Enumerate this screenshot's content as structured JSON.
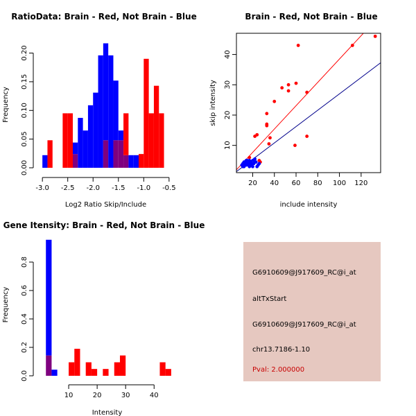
{
  "colors": {
    "red": "#ff0000",
    "blue": "#0000ff",
    "overlap": "#7f007f",
    "brain_line": "#ff0000",
    "notbrain_line": "#00008b",
    "info_bg": "#e6c8c0",
    "pval": "#c80000"
  },
  "chart_data": [
    {
      "id": "ratio-hist",
      "type": "bar",
      "title": "RatioData: Brain - Red, Not Brain - Blue",
      "xlabel": "Log2 Ratio Skip/Include",
      "ylabel": "Frequency",
      "xlim": [
        -3.05,
        -0.45
      ],
      "ylim": [
        0,
        0.22
      ],
      "xticks": [
        -3.0,
        -2.5,
        -2.0,
        -1.5,
        -1.0,
        -0.5
      ],
      "xtick_labels": [
        "-3.0",
        "-2.5",
        "-2.0",
        "-1.5",
        "-1.0",
        "-0.5"
      ],
      "yticks": [
        0,
        0.05,
        0.1,
        0.15,
        0.2
      ],
      "ytick_labels": [
        "0.00",
        "0.05",
        "0.10",
        "0.15",
        "0.20"
      ],
      "bin_width": 0.1,
      "series": [
        {
          "name": "Not Brain",
          "color": "blue",
          "bins": [
            [
              -3.0,
              0.022
            ],
            [
              -2.4,
              0.044
            ],
            [
              -2.3,
              0.087
            ],
            [
              -2.2,
              0.065
            ],
            [
              -2.1,
              0.109
            ],
            [
              -2.0,
              0.131
            ],
            [
              -1.9,
              0.196
            ],
            [
              -1.8,
              0.217
            ],
            [
              -1.7,
              0.196
            ],
            [
              -1.6,
              0.152
            ],
            [
              -1.5,
              0.065
            ],
            [
              -1.4,
              0.022
            ],
            [
              -1.3,
              0.022
            ],
            [
              -1.2,
              0.022
            ]
          ]
        },
        {
          "name": "Brain",
          "color": "red",
          "bins": [
            [
              -2.9,
              0.048
            ],
            [
              -2.6,
              0.095
            ],
            [
              -2.5,
              0.095
            ],
            [
              -2.4,
              0.024
            ],
            [
              -1.8,
              0.048
            ],
            [
              -1.6,
              0.048
            ],
            [
              -1.5,
              0.048
            ],
            [
              -1.4,
              0.095
            ],
            [
              -1.1,
              0.024
            ],
            [
              -1.0,
              0.19
            ],
            [
              -0.9,
              0.095
            ],
            [
              -0.8,
              0.143
            ],
            [
              -0.7,
              0.095
            ]
          ]
        }
      ]
    },
    {
      "id": "scatter",
      "type": "scatter",
      "title": "Brain - Red, Not Brain - Blue",
      "xlabel": "include intensity",
      "ylabel": "skip intensity",
      "xlim": [
        5,
        138
      ],
      "ylim": [
        1,
        47
      ],
      "xticks": [
        20,
        40,
        60,
        80,
        100,
        120
      ],
      "xtick_labels": [
        "20",
        "40",
        "60",
        "80",
        "100",
        "120"
      ],
      "yticks": [
        10,
        20,
        30,
        40
      ],
      "ytick_labels": [
        "10",
        "20",
        "30",
        "40"
      ],
      "series": [
        {
          "name": "Brain",
          "color": "red",
          "points": [
            [
              133,
              46
            ],
            [
              112,
              43
            ],
            [
              62,
              43
            ],
            [
              70,
              27.5
            ],
            [
              70,
              13
            ],
            [
              60,
              30.5
            ],
            [
              59,
              10
            ],
            [
              53,
              30
            ],
            [
              53,
              28
            ],
            [
              47,
              29
            ],
            [
              40,
              24.5
            ],
            [
              36,
              12.5
            ],
            [
              35,
              10.5
            ],
            [
              33,
              20.5
            ],
            [
              33,
              17
            ],
            [
              33,
              16.5
            ],
            [
              22,
              13
            ],
            [
              24,
              13.5
            ],
            [
              26,
              5
            ],
            [
              27,
              4.5
            ],
            [
              17,
              6
            ],
            [
              14,
              4
            ]
          ]
        },
        {
          "name": "Not Brain",
          "color": "blue",
          "points": [
            [
              10,
              3.5
            ],
            [
              11,
              4
            ],
            [
              12,
              3
            ],
            [
              13,
              4.5
            ],
            [
              14,
              3.5
            ],
            [
              15,
              5
            ],
            [
              16,
              4
            ],
            [
              17,
              3
            ],
            [
              18,
              4.5
            ],
            [
              19,
              3.5
            ],
            [
              20,
              5
            ],
            [
              21,
              4
            ],
            [
              22,
              5.5
            ],
            [
              23,
              4.5
            ],
            [
              24,
              3
            ],
            [
              12,
              4.5
            ],
            [
              14,
              5
            ],
            [
              16,
              3.5
            ],
            [
              18,
              3.5
            ],
            [
              20,
              3
            ],
            [
              11,
              3
            ],
            [
              13,
              3.5
            ],
            [
              15,
              4
            ],
            [
              17,
              5
            ],
            [
              19,
              4
            ],
            [
              21,
              5
            ],
            [
              25,
              3.5
            ],
            [
              26,
              4
            ]
          ]
        }
      ],
      "fit_lines": [
        {
          "name": "Brain",
          "color": "brain_line",
          "slope": 0.385,
          "intercept": 0.0
        },
        {
          "name": "Not Brain",
          "color": "notbrain_line",
          "slope": 0.27,
          "intercept": 0.0
        }
      ]
    },
    {
      "id": "intensity-hist",
      "type": "bar",
      "title": "Gene Itensity: Brain - Red, Not Brain - Blue",
      "xlabel": "Intensity",
      "ylabel": "Frequency",
      "xlim": [
        0,
        47
      ],
      "ylim": [
        0,
        1.0
      ],
      "xticks": [
        10,
        20,
        30,
        40
      ],
      "xtick_labels": [
        "10",
        "20",
        "30",
        "40"
      ],
      "yticks": [
        0,
        0.2,
        0.4,
        0.6,
        0.8
      ],
      "ytick_labels": [
        "0.0",
        "0.2",
        "0.4",
        "0.6",
        "0.8"
      ],
      "bin_width": 2,
      "series": [
        {
          "name": "Not Brain",
          "color": "blue",
          "bins": [
            [
              2,
              0.957
            ],
            [
              4,
              0.043
            ]
          ]
        },
        {
          "name": "Brain",
          "color": "red",
          "bins": [
            [
              2,
              0.143
            ],
            [
              10,
              0.095
            ],
            [
              12,
              0.19
            ],
            [
              16,
              0.095
            ],
            [
              18,
              0.048
            ],
            [
              22,
              0.048
            ],
            [
              26,
              0.095
            ],
            [
              28,
              0.143
            ],
            [
              42,
              0.095
            ],
            [
              44,
              0.048
            ]
          ]
        }
      ]
    }
  ],
  "info_panel": {
    "lines": [
      "G6910609@J917609_RC@i_at",
      "altTxStart",
      "G6910609@J917609_RC@i_at",
      "chr13.7186-1.10"
    ],
    "pval": "Pval: 2.000000"
  }
}
